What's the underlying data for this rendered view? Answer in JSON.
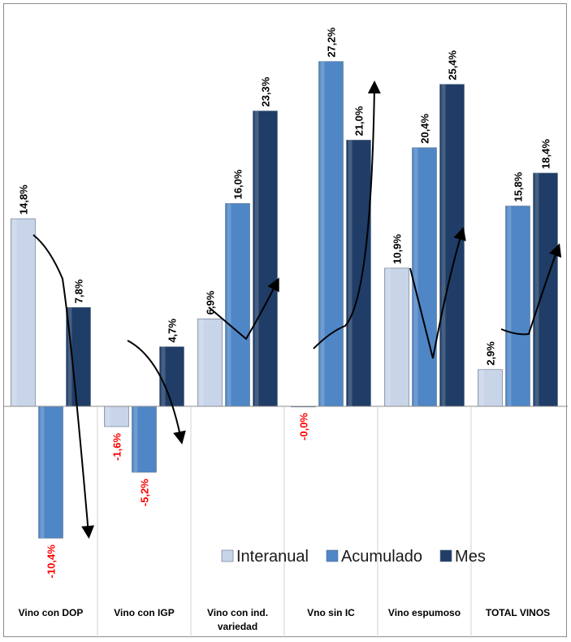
{
  "chart_data": {
    "type": "bar",
    "categories": [
      [
        "Vino con DOP"
      ],
      [
        "Vino con IGP"
      ],
      [
        "Vino con ind.",
        "variedad"
      ],
      [
        "Vno sin IC"
      ],
      [
        "Vino espumoso"
      ],
      [
        "TOTAL VINOS"
      ]
    ],
    "series": [
      {
        "name": "Interanual",
        "values": [
          14.8,
          -1.6,
          6.9,
          -0.0,
          10.9,
          2.9
        ],
        "labels": [
          "14,8%",
          "-1,6%",
          "6,9%",
          "-0,0%",
          "10,9%",
          "2,9%"
        ]
      },
      {
        "name": "Acumulado",
        "values": [
          -10.4,
          -5.2,
          16.0,
          27.2,
          20.4,
          15.8
        ],
        "labels": [
          "-10,4%",
          "-5,2%",
          "16,0%",
          "27,2%",
          "20,4%",
          "15,8%"
        ]
      },
      {
        "name": "Mes",
        "values": [
          7.8,
          4.7,
          23.3,
          21.0,
          25.4,
          18.4
        ],
        "labels": [
          "7,8%",
          "4,7%",
          "23,3%",
          "21,0%",
          "25,4%",
          "18,4%"
        ]
      }
    ],
    "colors": {
      "Interanual": "#c8d4e8",
      "Acumulado": "#4f86c6",
      "Mes": "#1f3d66",
      "negative_label": "#ff0000",
      "positive_label": "#000000"
    },
    "legend": "bottom-right",
    "grid": false
  }
}
